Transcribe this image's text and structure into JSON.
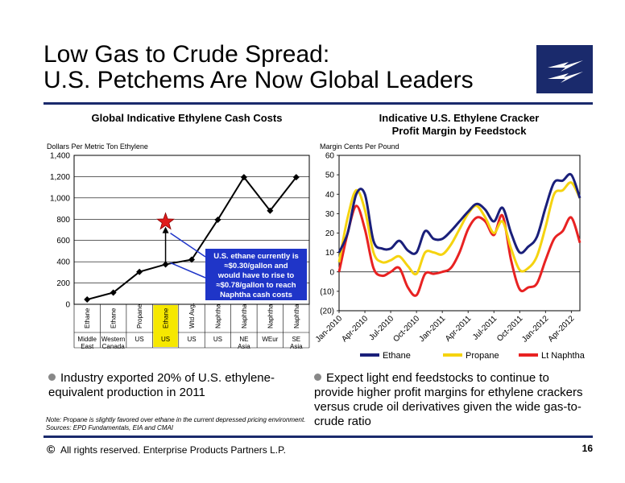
{
  "slide": {
    "title_line1": "Low Gas to Crude Spread:",
    "title_line2": "U.S. Petchems Are Now Global Leaders",
    "footer_symbol": "©",
    "footer_text": "All rights reserved. Enterprise Products Partners L.P.",
    "page_number": "16",
    "note_line1": "Note:  Propane is slightly favored over ethane in the current depressed pricing environment.",
    "note_line2": "Sources:  EPD Fundamentals, EIA and CMAI",
    "bullet_left": "Industry exported 20% of U.S. ethylene-equivalent production in 2011",
    "bullet_right": "Expect light end feedstocks to continue to provide higher profit margins for ethylene crackers versus crude oil derivatives given the wide gas-to-crude ratio",
    "colors": {
      "brand_navy": "#1a2a6c",
      "callout_blue": "#1f35c8",
      "star_red": "#e01b1b"
    }
  },
  "chart_data": [
    {
      "type": "line",
      "title": "Global Indicative Ethylene Cash Costs",
      "ylabel": "Dollars  Per Metric Ton Ethylene",
      "ylim": [
        0,
        1400
      ],
      "yticks": [
        "0",
        "200",
        "400",
        "600",
        "800",
        "1,000",
        "1,200",
        "1,400"
      ],
      "grid": true,
      "categories": [
        "Ethane",
        "Ethane",
        "Propane",
        "Ethane",
        "Wtd Avg.",
        "Naphtha",
        "Naphtha",
        "Naphtha",
        "Naphtha"
      ],
      "regions": [
        "Middle East",
        "Western Canada",
        "US",
        "US",
        "US",
        "US",
        "NE Asia",
        "WEur",
        "SE Asia"
      ],
      "values": [
        45,
        110,
        305,
        375,
        420,
        795,
        1195,
        880,
        1195
      ],
      "highlight_category_index": 3,
      "annotation": {
        "label": "U.S. ethane currently is ≈$0.30/gallon and would have to rise to ≈$0.78/gallon to reach Naphtha cash costs",
        "marker_value": 775
      }
    },
    {
      "type": "line",
      "title_line1": "Indicative U.S. Ethylene Cracker",
      "title_line2": "Profit Margin by Feedstock",
      "ylabel": "Margin Cents Per Pound",
      "ylim": [
        -20,
        60
      ],
      "yticks": [
        "(20)",
        "(10)",
        "0",
        "10",
        "20",
        "30",
        "40",
        "50",
        "60"
      ],
      "xticks": [
        "Jan-2010",
        "Apr-2010",
        "Jul-2010",
        "Oct-2010",
        "Jan-2011",
        "Apr-2011",
        "Jul-2011",
        "Oct-2011",
        "Jan-2012",
        "Apr-2012"
      ],
      "x": [
        "2010-01",
        "2010-02",
        "2010-03",
        "2010-04",
        "2010-05",
        "2010-06",
        "2010-07",
        "2010-08",
        "2010-09",
        "2010-10",
        "2010-11",
        "2010-12",
        "2011-01",
        "2011-02",
        "2011-03",
        "2011-04",
        "2011-05",
        "2011-06",
        "2011-07",
        "2011-08",
        "2011-09",
        "2011-10",
        "2011-11",
        "2011-12",
        "2012-01",
        "2012-02",
        "2012-03",
        "2012-04",
        "2012-05"
      ],
      "legend_position": "bottom",
      "series": [
        {
          "name": "Ethane",
          "color": "#1a1f7a",
          "values": [
            10,
            20,
            40,
            40,
            16,
            12,
            12,
            16,
            11,
            10,
            21,
            17,
            17,
            21,
            26,
            31,
            35,
            32,
            26,
            33,
            20,
            10,
            13,
            18,
            33,
            46,
            47,
            50,
            38
          ]
        },
        {
          "name": "Propane",
          "color": "#f5d30f",
          "values": [
            5,
            28,
            42,
            32,
            10,
            5,
            6,
            8,
            3,
            -1,
            10,
            10,
            9,
            14,
            22,
            30,
            34,
            28,
            20,
            26,
            12,
            1,
            2,
            8,
            23,
            40,
            42,
            46,
            38
          ]
        },
        {
          "name": "Lt Naphtha",
          "color": "#e82222",
          "values": [
            0,
            20,
            34,
            22,
            2,
            -2,
            0,
            2,
            -8,
            -12,
            -1,
            -1,
            0,
            2,
            10,
            22,
            28,
            26,
            19,
            29,
            6,
            -9,
            -8,
            -6,
            6,
            17,
            21,
            28,
            15
          ]
        }
      ]
    }
  ]
}
